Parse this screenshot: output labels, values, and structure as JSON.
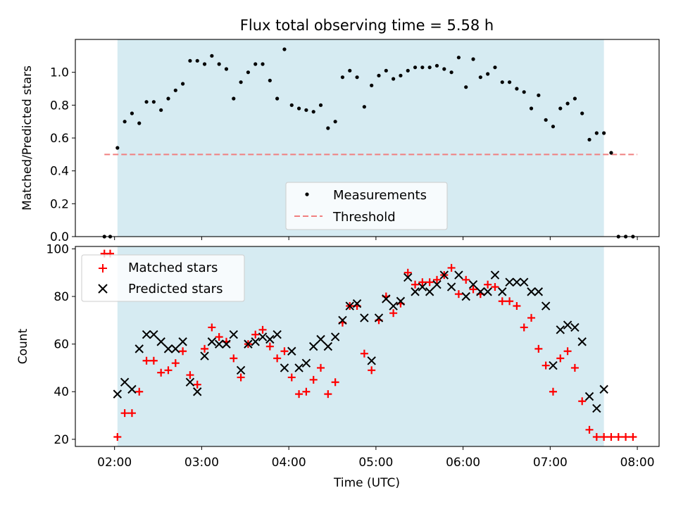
{
  "title": "Flux total observing time = 5.58 h",
  "colors": {
    "shade": "#add8e6",
    "measurement": "#000000",
    "threshold": "#f08080",
    "matched": "#ff0000",
    "predicted": "#000000"
  },
  "chart_data": [
    {
      "type": "scatter",
      "ylabel": "Matched/Predicted stars",
      "xlim": [
        "01:33",
        "08:15"
      ],
      "ylim": [
        0,
        1.2
      ],
      "yticks": [
        "0.0",
        "0.2",
        "0.4",
        "0.6",
        "0.8",
        "1.0"
      ],
      "observing_window": [
        "02:02",
        "07:37"
      ],
      "legend": {
        "position": "lower center",
        "measurements": "Measurements",
        "threshold": "Threshold"
      },
      "threshold": {
        "value": 0.5,
        "x_range": [
          "01:53",
          "08:00"
        ]
      },
      "series": [
        {
          "name": "Measurements",
          "x": [
            "01:53",
            "01:57",
            "02:02",
            "02:07",
            "02:12",
            "02:17",
            "02:22",
            "02:27",
            "02:32",
            "02:37",
            "02:42",
            "02:47",
            "02:52",
            "02:57",
            "03:02",
            "03:07",
            "03:12",
            "03:17",
            "03:22",
            "03:27",
            "03:32",
            "03:37",
            "03:42",
            "03:47",
            "03:52",
            "03:57",
            "04:02",
            "04:07",
            "04:12",
            "04:17",
            "04:22",
            "04:27",
            "04:32",
            "04:37",
            "04:42",
            "04:47",
            "04:52",
            "04:57",
            "05:02",
            "05:07",
            "05:12",
            "05:17",
            "05:22",
            "05:27",
            "05:32",
            "05:37",
            "05:42",
            "05:47",
            "05:52",
            "05:57",
            "06:02",
            "06:07",
            "06:12",
            "06:17",
            "06:22",
            "06:27",
            "06:32",
            "06:37",
            "06:42",
            "06:47",
            "06:52",
            "06:57",
            "07:02",
            "07:07",
            "07:12",
            "07:17",
            "07:22",
            "07:27",
            "07:32",
            "07:37",
            "07:42",
            "07:47",
            "07:52",
            "07:57"
          ],
          "y": [
            0.0,
            0.0,
            0.54,
            0.7,
            0.75,
            0.69,
            0.82,
            0.82,
            0.77,
            0.84,
            0.89,
            0.93,
            1.07,
            1.07,
            1.05,
            1.1,
            1.05,
            1.02,
            0.84,
            0.94,
            1.0,
            1.05,
            1.05,
            0.95,
            0.84,
            1.14,
            0.8,
            0.78,
            0.77,
            0.76,
            0.8,
            0.66,
            0.7,
            0.97,
            1.01,
            0.97,
            0.79,
            0.92,
            0.98,
            1.01,
            0.96,
            0.98,
            1.01,
            1.03,
            1.03,
            1.03,
            1.04,
            1.02,
            1.0,
            1.09,
            0.91,
            1.08,
            0.97,
            0.99,
            1.03,
            0.94,
            0.94,
            0.9,
            0.88,
            0.78,
            0.86,
            0.71,
            0.67,
            0.78,
            0.81,
            0.84,
            0.75,
            0.59,
            0.63,
            0.63,
            0.51,
            0.0,
            0.0,
            0.0
          ]
        }
      ]
    },
    {
      "type": "scatter",
      "xlabel": "Time (UTC)",
      "ylabel": "Count",
      "xlim": [
        "01:33",
        "08:15"
      ],
      "ylim": [
        17,
        101
      ],
      "xticks": [
        "02:00",
        "03:00",
        "04:00",
        "05:00",
        "06:00",
        "07:00",
        "08:00"
      ],
      "yticks": [
        "20",
        "40",
        "60",
        "80",
        "100"
      ],
      "observing_window": [
        "02:02",
        "07:37"
      ],
      "legend": {
        "position": "upper left",
        "matched": "Matched stars",
        "predicted": "Predicted stars"
      },
      "series": [
        {
          "name": "Matched stars",
          "x": [
            "01:53",
            "01:57",
            "02:02",
            "02:07",
            "02:12",
            "02:17",
            "02:22",
            "02:27",
            "02:32",
            "02:37",
            "02:42",
            "02:47",
            "02:52",
            "02:57",
            "03:02",
            "03:07",
            "03:12",
            "03:17",
            "03:22",
            "03:27",
            "03:32",
            "03:37",
            "03:42",
            "03:47",
            "03:52",
            "03:57",
            "04:02",
            "04:07",
            "04:12",
            "04:17",
            "04:22",
            "04:27",
            "04:32",
            "04:37",
            "04:42",
            "04:47",
            "04:52",
            "04:57",
            "05:02",
            "05:07",
            "05:12",
            "05:17",
            "05:22",
            "05:27",
            "05:32",
            "05:37",
            "05:42",
            "05:47",
            "05:52",
            "05:57",
            "06:02",
            "06:07",
            "06:12",
            "06:17",
            "06:22",
            "06:27",
            "06:32",
            "06:37",
            "06:42",
            "06:47",
            "06:52",
            "06:57",
            "07:02",
            "07:07",
            "07:12",
            "07:17",
            "07:22",
            "07:27",
            "07:32",
            "07:37",
            "07:42",
            "07:47",
            "07:52",
            "07:57"
          ],
          "y": [
            98,
            98,
            21,
            31,
            31,
            40,
            53,
            53,
            48,
            49,
            52,
            57,
            47,
            43,
            58,
            67,
            63,
            61,
            54,
            46,
            60,
            64,
            66,
            59,
            54,
            57,
            46,
            39,
            40,
            45,
            50,
            39,
            44,
            69,
            76,
            76,
            56,
            49,
            70,
            80,
            73,
            77,
            90,
            85,
            86,
            86,
            87,
            89,
            92,
            81,
            87,
            83,
            81,
            85,
            84,
            78,
            78,
            76,
            67,
            71,
            58,
            51,
            40,
            54,
            57,
            50,
            36,
            24,
            21,
            21,
            21,
            21,
            21,
            21
          ]
        },
        {
          "name": "Predicted stars",
          "x": [
            "02:02",
            "02:07",
            "02:12",
            "02:17",
            "02:22",
            "02:27",
            "02:32",
            "02:37",
            "02:42",
            "02:47",
            "02:52",
            "02:57",
            "03:02",
            "03:07",
            "03:12",
            "03:17",
            "03:22",
            "03:27",
            "03:32",
            "03:37",
            "03:42",
            "03:47",
            "03:52",
            "03:57",
            "04:02",
            "04:07",
            "04:12",
            "04:17",
            "04:22",
            "04:27",
            "04:32",
            "04:37",
            "04:42",
            "04:47",
            "04:52",
            "04:57",
            "05:02",
            "05:07",
            "05:12",
            "05:17",
            "05:22",
            "05:27",
            "05:32",
            "05:37",
            "05:42",
            "05:47",
            "05:52",
            "05:57",
            "06:02",
            "06:07",
            "06:12",
            "06:17",
            "06:22",
            "06:27",
            "06:32",
            "06:37",
            "06:42",
            "06:47",
            "06:52",
            "06:57",
            "07:02",
            "07:07",
            "07:12",
            "07:17",
            "07:22",
            "07:27",
            "07:32",
            "07:37"
          ],
          "y": [
            39,
            44,
            41,
            58,
            64,
            64,
            61,
            58,
            58,
            61,
            44,
            40,
            55,
            61,
            60,
            60,
            64,
            49,
            60,
            61,
            63,
            62,
            64,
            50,
            57,
            50,
            52,
            59,
            62,
            59,
            63,
            70,
            76,
            77,
            71,
            53,
            71,
            79,
            76,
            78,
            88,
            82,
            84,
            82,
            85,
            89,
            84,
            89,
            80,
            85,
            82,
            82,
            89,
            82,
            86,
            86,
            86,
            82,
            82,
            76,
            51,
            66,
            68,
            67,
            61,
            38,
            33,
            41
          ]
        }
      ]
    }
  ]
}
